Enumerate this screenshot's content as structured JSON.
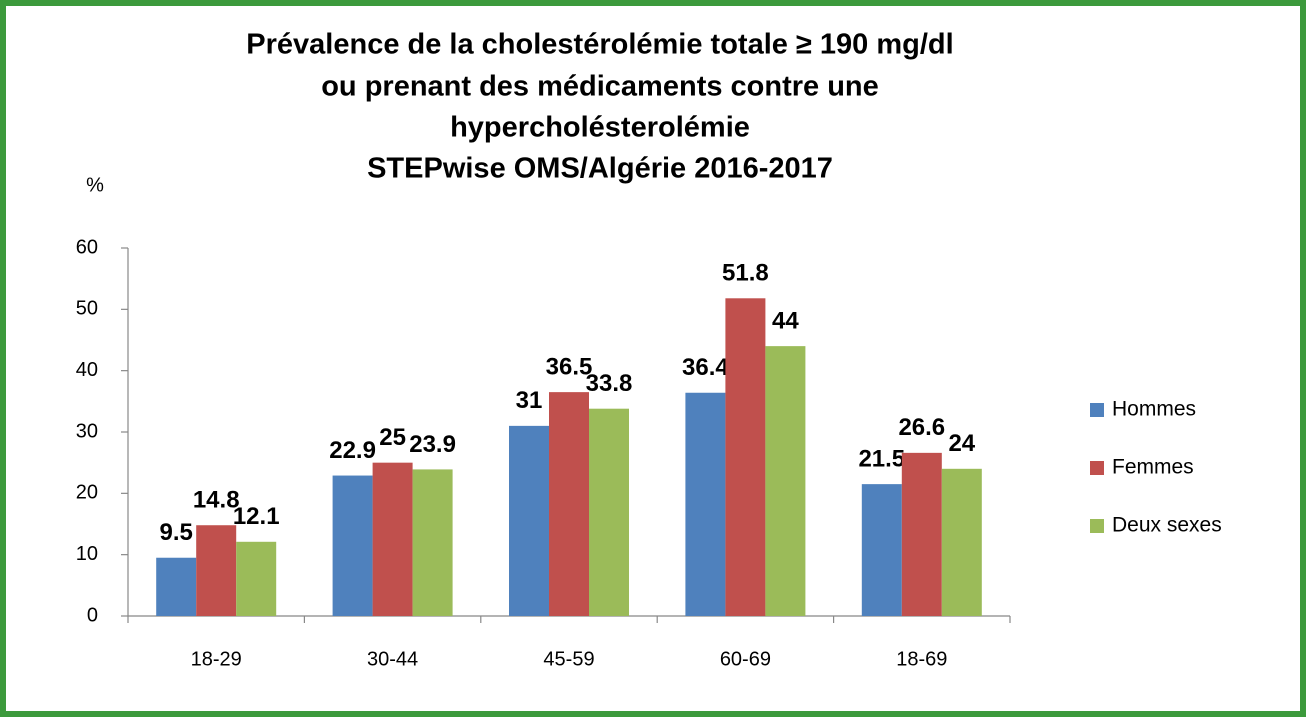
{
  "chart_data": {
    "type": "bar",
    "title": [
      "Prévalence de la cholestérolémie totale  ≥ 190 mg/dl",
      "ou prenant des médicaments contre une",
      "hypercholésterolémie",
      "STEPwise OMS/Algérie 2016-2017"
    ],
    "y_label": "%",
    "categories": [
      "18-29",
      "30-44",
      "45-59",
      "60-69",
      "18-69"
    ],
    "series": [
      {
        "name": "Hommes",
        "color": "#4f81bd",
        "values": [
          9.5,
          22.9,
          31,
          36.4,
          21.5
        ]
      },
      {
        "name": "Femmes",
        "color": "#c0504d",
        "values": [
          14.8,
          25,
          36.5,
          51.8,
          26.6
        ]
      },
      {
        "name": "Deux sexes",
        "color": "#9bbb59",
        "values": [
          12.1,
          23.9,
          33.8,
          44,
          24
        ]
      }
    ],
    "ylim": [
      0,
      60
    ],
    "yticks": [
      0,
      10,
      20,
      30,
      40,
      50,
      60
    ],
    "grid": false,
    "legend": "right"
  }
}
